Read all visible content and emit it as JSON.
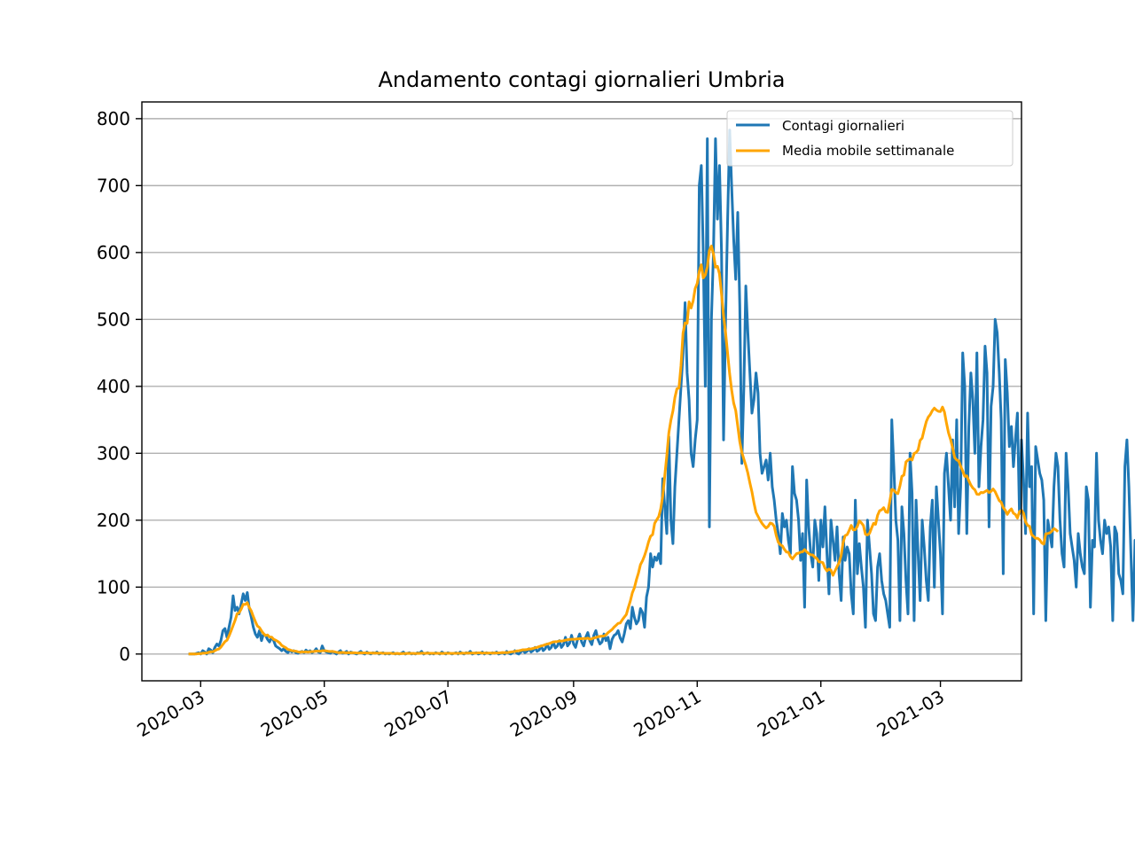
{
  "chart_data": {
    "type": "line",
    "title": "Andamento contagi giornalieri Umbria",
    "xlabel": "",
    "ylabel": "",
    "x_start": "2020-02-24",
    "x_end": "2021-03-31",
    "xlim": [
      "2020-02-01",
      "2021-04-10"
    ],
    "ylim": [
      -40,
      825
    ],
    "yticks": [
      0,
      100,
      200,
      300,
      400,
      500,
      600,
      700,
      800
    ],
    "xticks": [
      "2020-03",
      "2020-05",
      "2020-07",
      "2020-09",
      "2020-11",
      "2021-01",
      "2021-03"
    ],
    "xtick_dates": [
      "2020-03-01",
      "2020-05-01",
      "2020-07-01",
      "2020-09-01",
      "2020-11-01",
      "2021-01-01",
      "2021-03-01"
    ],
    "grid": "y",
    "legend_position": "upper right",
    "series": [
      {
        "name": "Contagi giornalieri",
        "color": "#1f77b4",
        "values": [
          0,
          0,
          0,
          0,
          1,
          2,
          0,
          5,
          3,
          0,
          8,
          6,
          2,
          10,
          15,
          12,
          20,
          35,
          38,
          25,
          40,
          55,
          87,
          65,
          70,
          60,
          75,
          90,
          80,
          92,
          68,
          55,
          40,
          30,
          25,
          35,
          20,
          30,
          28,
          22,
          18,
          25,
          20,
          12,
          10,
          8,
          5,
          8,
          4,
          2,
          6,
          3,
          5,
          2,
          1,
          3,
          4,
          2,
          6,
          3,
          5,
          2,
          4,
          8,
          3,
          2,
          12,
          5,
          3,
          2,
          1,
          4,
          2,
          0,
          3,
          5,
          1,
          2,
          4,
          0,
          3,
          2,
          1,
          0,
          2,
          4,
          1,
          0,
          3,
          1,
          0,
          2,
          1,
          3,
          0,
          1,
          2,
          0,
          1,
          0,
          1,
          2,
          0,
          1,
          0,
          1,
          3,
          0,
          1,
          2,
          0,
          1,
          0,
          2,
          1,
          4,
          0,
          1,
          2,
          0,
          1,
          0,
          2,
          1,
          0,
          3,
          1,
          0,
          2,
          1,
          0,
          1,
          2,
          0,
          3,
          1,
          0,
          2,
          1,
          4,
          0,
          1,
          2,
          0,
          1,
          3,
          0,
          2,
          1,
          0,
          2,
          1,
          3,
          0,
          1,
          2,
          0,
          4,
          1,
          0,
          2,
          5,
          1,
          0,
          3,
          6,
          2,
          4,
          8,
          3,
          5,
          10,
          4,
          6,
          12,
          5,
          8,
          15,
          7,
          10,
          18,
          9,
          12,
          20,
          10,
          14,
          25,
          12,
          16,
          28,
          15,
          10,
          22,
          30,
          18,
          12,
          25,
          32,
          20,
          14,
          28,
          35,
          22,
          15,
          18,
          30,
          20,
          25,
          8,
          22,
          28,
          30,
          35,
          24,
          18,
          30,
          45,
          50,
          38,
          70,
          55,
          45,
          50,
          68,
          62,
          40,
          85,
          100,
          150,
          130,
          145,
          140,
          150,
          135,
          262,
          220,
          180,
          325,
          200,
          165,
          250,
          300,
          350,
          400,
          450,
          525,
          420,
          380,
          300,
          280,
          320,
          350,
          700,
          730,
          600,
          400,
          770,
          190,
          500,
          600,
          770,
          650,
          730,
          600,
          320,
          500,
          650,
          783,
          700,
          620,
          560,
          660,
          520,
          285,
          400,
          550,
          480,
          420,
          360,
          380,
          420,
          390,
          300,
          270,
          280,
          290,
          260,
          300,
          250,
          230,
          200,
          180,
          150,
          210,
          190,
          200,
          170,
          150,
          280,
          240,
          230,
          200,
          140,
          180,
          70,
          260,
          190,
          150,
          130,
          200,
          180,
          110,
          200,
          160,
          220,
          150,
          90,
          200,
          170,
          140,
          190,
          120,
          80,
          175,
          140,
          160,
          150,
          90,
          60,
          230,
          120,
          165,
          130,
          100,
          40,
          200,
          160,
          120,
          60,
          50,
          130,
          150,
          110,
          90,
          80,
          60,
          40,
          350,
          280,
          200,
          170,
          50,
          220,
          180,
          110,
          60,
          300,
          240,
          50,
          230,
          150,
          80,
          200,
          160,
          110,
          80,
          190,
          230,
          100,
          250,
          200,
          150,
          60,
          270,
          300,
          250,
          200,
          320,
          220,
          350,
          180,
          250,
          450,
          400,
          180,
          340,
          420,
          380,
          300,
          450,
          250,
          310,
          350,
          460,
          420,
          190,
          370,
          400,
          500,
          480,
          420,
          350,
          120,
          440,
          390,
          310,
          340,
          280,
          320,
          360,
          210,
          320,
          260,
          180,
          360,
          250,
          280,
          60,
          310,
          290,
          270,
          260,
          230,
          50,
          200,
          180,
          160,
          250,
          300,
          280,
          200,
          150,
          130,
          300,
          250,
          180,
          160,
          140,
          100,
          180,
          150,
          130,
          120,
          250,
          230,
          70,
          170,
          160,
          300,
          200,
          170,
          150,
          200,
          180,
          190,
          160,
          50,
          190,
          180,
          120,
          110,
          90,
          280,
          320,
          250,
          150,
          50,
          170,
          150,
          175,
          175
        ]
      },
      {
        "name": "Media mobile settimanale",
        "color": "#ffa500",
        "values": [
          0,
          0,
          0,
          0,
          0.2,
          0.5,
          0.5,
          1.2,
          1.5,
          1.5,
          2.7,
          3.5,
          3.3,
          4.9,
          6.6,
          7.6,
          10.4,
          14.4,
          18.6,
          20.7,
          27,
          34.6,
          42.6,
          50.3,
          60.1,
          61.7,
          67.1,
          74.3,
          74,
          76.7,
          69.6,
          64.3,
          55.9,
          48.5,
          41.9,
          39.6,
          34.7,
          30.7,
          27.7,
          28.5,
          25.5,
          25.3,
          22.1,
          20.7,
          18.9,
          16.7,
          12.9,
          11.1,
          9.4,
          7,
          6.1,
          5.1,
          4.6,
          4.3,
          3.3,
          2.7,
          3.4,
          2.9,
          3.4,
          2.9,
          3.6,
          3.6,
          3.9,
          4.4,
          4.4,
          4.1,
          4.9,
          4.9,
          4.6,
          4.1,
          3.9,
          3.9,
          3.4,
          2.6,
          2.1,
          2.3,
          2.4,
          2.1,
          1.9,
          2.1,
          1.9,
          1.9,
          1.9,
          1.4,
          1.6,
          1.8,
          1.6,
          1.7,
          1.6,
          1.3,
          1.3,
          1.3,
          1.4,
          1.3,
          1.1,
          1.4,
          1.1,
          1,
          0.9,
          1.1,
          1,
          0.7,
          0.7,
          0.9,
          0.6,
          0.6,
          0.9,
          0.7,
          0.9,
          1.1,
          0.9,
          0.9,
          0.7,
          1,
          0.9,
          1.3,
          1.1,
          1.1,
          1.3,
          1.1,
          1.1,
          1.1,
          1,
          1.1,
          0.9,
          1,
          0.9,
          1,
          1.1,
          1.1,
          0.9,
          1,
          1,
          1,
          1.1,
          1.3,
          1.1,
          1.3,
          1.4,
          1.3,
          1.4,
          1.4,
          1.4,
          1.7,
          1.7,
          1.3,
          1.4,
          1.4,
          1.3,
          1.4,
          1.3,
          1.6,
          1.6,
          1.6,
          1.9,
          2.3,
          2.1,
          2.3,
          2.4,
          3.1,
          3.4,
          3.9,
          4.7,
          4.9,
          5.6,
          6.4,
          6.3,
          6.7,
          7.6,
          7.6,
          8.4,
          9.3,
          10,
          11.1,
          12,
          12.9,
          14,
          14.9,
          15.6,
          16.9,
          18,
          18.4,
          18.7,
          19.6,
          19.3,
          19.9,
          20.7,
          21.3,
          21.7,
          22.1,
          22.1,
          22.3,
          22.6,
          22.9,
          22.9,
          23.3,
          23.1,
          23.9,
          22.3,
          22.7,
          24.1,
          24.6,
          25.9,
          26.4,
          26.7,
          26.9,
          28.6,
          31.9,
          34.3,
          36.7,
          40.3,
          43.1,
          45.9,
          46.4,
          51,
          55.1,
          59,
          69.6,
          79.5,
          91.4,
          98.9,
          110.9,
          121,
          133.6,
          139.4,
          147.1,
          156,
          167.5,
          176.1,
          178.4,
          195.3,
          200.5,
          205.4,
          216.8,
          236.1,
          266.4,
          296.4,
          330.7,
          349.3,
          363.2,
          383.2,
          396.4,
          397.6,
          431.1,
          479.7,
          494.8,
          494.1,
          526.3,
          517.1,
          527.8,
          546.3,
          553.9,
          571.8,
          581.6,
          562.1,
          566.5,
          578.9,
          603,
          609.7,
          598,
          578.1,
          579.4,
          568.1,
          537.9,
          505.3,
          480,
          448.6,
          418.2,
          394.6,
          375,
          364,
          340.6,
          317.1,
          301.4,
          291.3,
          281.9,
          270.3,
          255.6,
          242.4,
          225.7,
          211.7,
          205.7,
          200,
          195.3,
          191.4,
          188.3,
          190.7,
          195.8,
          194.7,
          190.9,
          177.1,
          167.1,
          163.4,
          161.6,
          156.4,
          152.4,
          152.2,
          145.6,
          142.2,
          146.2,
          150,
          150.7,
          152.4,
          152.8,
          156.1,
          152.7,
          150.4,
          148.2,
          148.1,
          144.7,
          143,
          137.8,
          137.5,
          136.6,
          128.5,
          124.3,
          127.1,
          125.3,
          117.7,
          124.2,
          130.8,
          136.6,
          147.3,
          167,
          177,
          178.5,
          184.8,
          192.2,
          185.5,
          185.9,
          190.7,
          199.1,
          196.1,
          192.1,
          178.9,
          178,
          180.3,
          188.3,
          195.2,
          193.8,
          207.3,
          214.2,
          215.5,
          218.7,
          212.4,
          211.5,
          227.6,
          245.8,
          244.9,
          241.2,
          239.6,
          251.1,
          265.6,
          267.4,
          287.1,
          289.8,
          291.5,
          290,
          299.7,
          301.2,
          304.9,
          319.3,
          322.8,
          335.6,
          347.2,
          354.2,
          357.8,
          363.6,
          367.5,
          364.6,
          362.7,
          362.3,
          369.1,
          361.7,
          345.2,
          330.5,
          320.7,
          308.2,
          293.7,
          290.1,
          288.6,
          280.6,
          273.5,
          265.4,
          266.2,
          259.1,
          252.5,
          248.1,
          245.4,
          238.8,
          238.5,
          241.5,
          241,
          242.8,
          244.5,
          241.3,
          243.2,
          246.6,
          242.6,
          235.8,
          229.3,
          226.8,
          218.8,
          214.8,
          208.6,
          213.8,
          216.9,
          210.4,
          208.6,
          203.2,
          212.7,
          214.8,
          210.5,
          197.4,
          192.3,
          190.9,
          178.5,
          175.6,
          172.9,
          172.9,
          170.5,
          165.8,
          164.2,
          179.6,
          180.1,
          181.1,
          183.7,
          187.4,
          185.4,
          182.8
        ]
      }
    ]
  }
}
